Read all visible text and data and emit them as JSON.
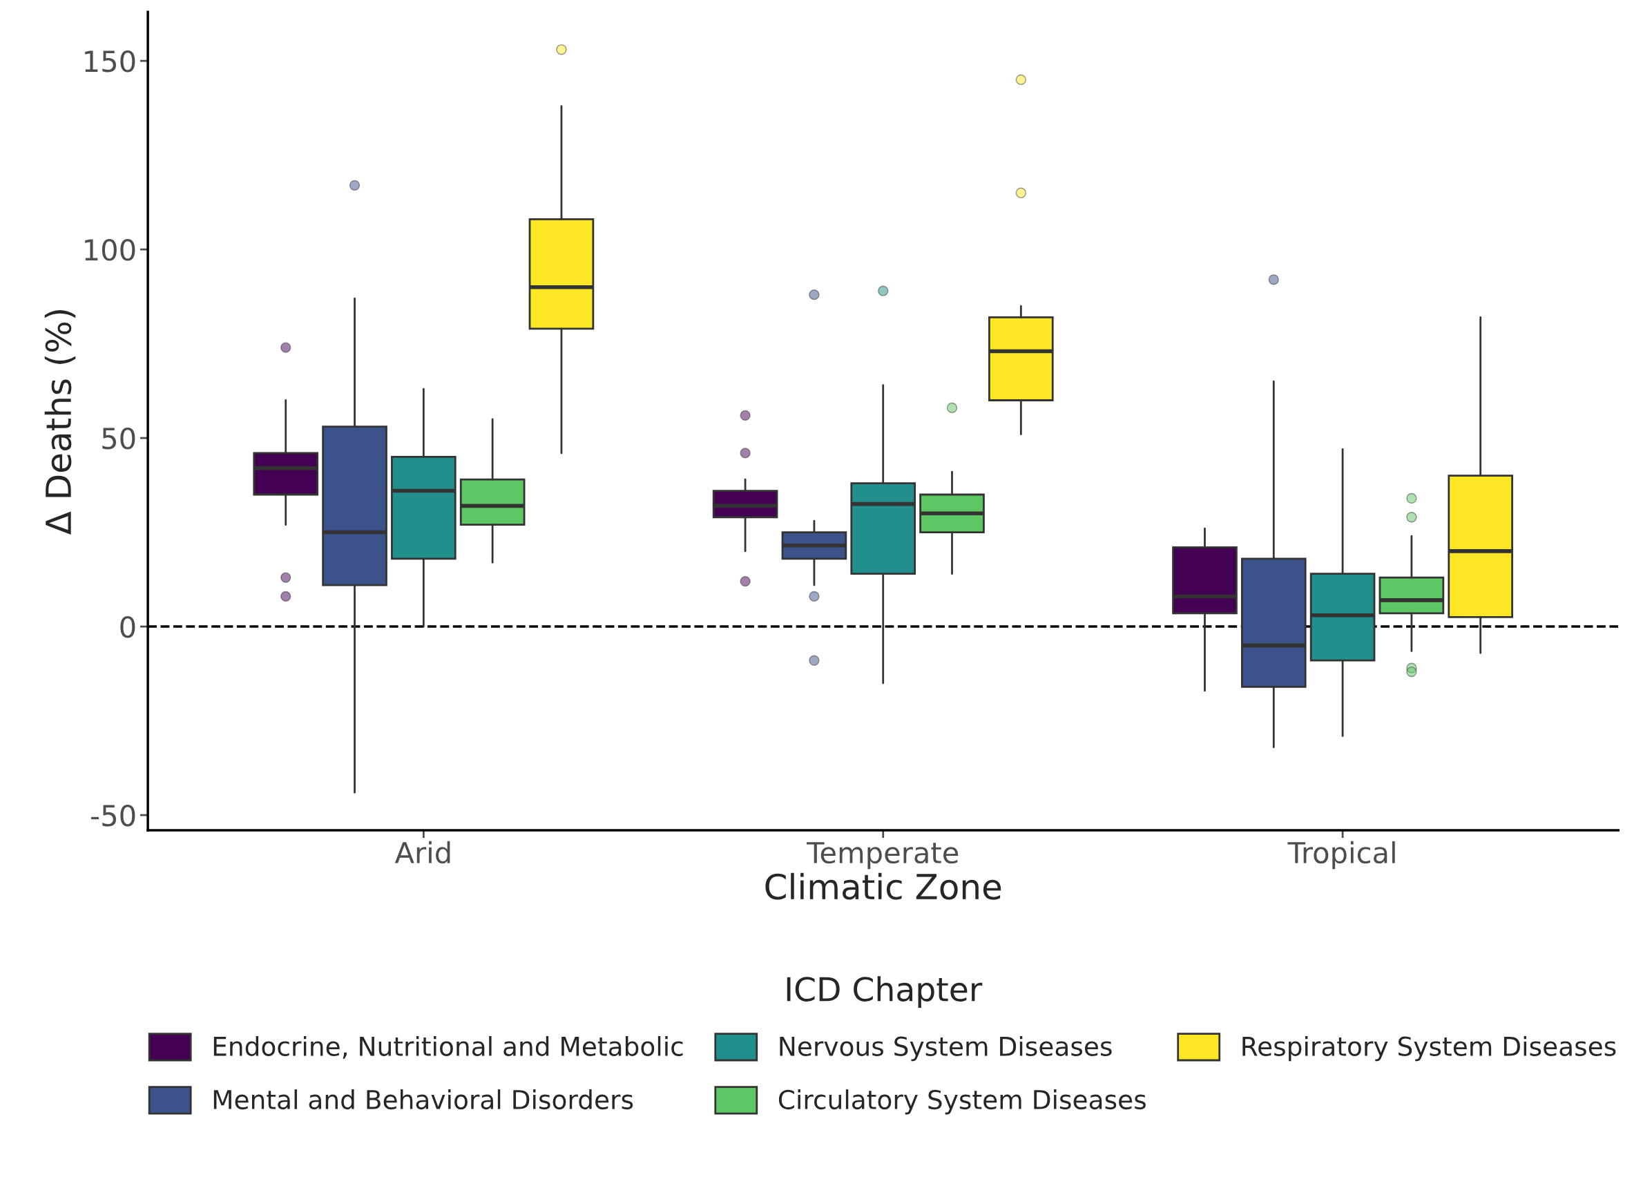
{
  "chart_data": {
    "type": "box",
    "xlabel": "Climatic Zone",
    "ylabel": "Δ Deaths (%)",
    "legend_title": "ICD Chapter",
    "categories": [
      "Arid",
      "Temperate",
      "Tropical"
    ],
    "ylim": [
      -54,
      163
    ],
    "yticks": [
      -50,
      0,
      50,
      100,
      150
    ],
    "grid": false,
    "legend": "bottom",
    "ref_lines": [
      {
        "axis": "y",
        "value": 0,
        "line_style": "dashed",
        "color": "#000000"
      }
    ],
    "series": [
      {
        "name": "Endocrine, Nutritional and Metabolic",
        "color": "#440154",
        "boxes": [
          {
            "low": 27,
            "q1": 35,
            "median": 42,
            "q3": 46,
            "high": 60,
            "outliers": [
              74,
              13,
              8
            ]
          },
          {
            "low": 20,
            "q1": 29,
            "median": 32,
            "q3": 36,
            "high": 39,
            "outliers": [
              56,
              46,
              12
            ]
          },
          {
            "low": -17,
            "q1": 3.5,
            "median": 8,
            "q3": 21,
            "high": 26
          }
        ]
      },
      {
        "name": "Mental and Behavioral Disorders",
        "color": "#3b528b",
        "boxes": [
          {
            "low": -44,
            "q1": 11,
            "median": 25,
            "q3": 53,
            "high": 87,
            "outliers": [
              117
            ]
          },
          {
            "low": 11,
            "q1": 18,
            "median": 21.5,
            "q3": 25,
            "high": 28,
            "outliers": [
              88,
              8,
              -9
            ]
          },
          {
            "low": -32,
            "q1": -16,
            "median": -5,
            "q3": 18,
            "high": 65,
            "outliers": [
              92
            ]
          }
        ]
      },
      {
        "name": "Nervous System Diseases",
        "color": "#21908c",
        "boxes": [
          {
            "low": 0,
            "q1": 18,
            "median": 36,
            "q3": 45,
            "high": 63
          },
          {
            "low": -15,
            "q1": 14,
            "median": 32.5,
            "q3": 38,
            "high": 64,
            "outliers": [
              89
            ]
          },
          {
            "low": -29,
            "q1": -9,
            "median": 3,
            "q3": 14,
            "high": 47
          }
        ]
      },
      {
        "name": "Circulatory System Diseases",
        "color": "#5dc863",
        "boxes": [
          {
            "low": 17,
            "q1": 27,
            "median": 32,
            "q3": 39,
            "high": 55
          },
          {
            "low": 14,
            "q1": 25,
            "median": 30,
            "q3": 35,
            "high": 41,
            "outliers": [
              58
            ]
          },
          {
            "low": -6.5,
            "q1": 3.5,
            "median": 7,
            "q3": 13,
            "high": 24,
            "outliers": [
              34,
              29,
              -11,
              -12
            ]
          }
        ]
      },
      {
        "name": "Respiratory System Diseases",
        "color": "#fde725",
        "boxes": [
          {
            "low": 46,
            "q1": 79,
            "median": 90,
            "q3": 108,
            "high": 138,
            "outliers": [
              153
            ]
          },
          {
            "low": 51,
            "q1": 60,
            "median": 73,
            "q3": 82,
            "high": 85,
            "outliers": [
              145,
              115
            ]
          },
          {
            "low": -7,
            "q1": 2.5,
            "median": 20,
            "q3": 40,
            "high": 82
          }
        ]
      }
    ]
  }
}
